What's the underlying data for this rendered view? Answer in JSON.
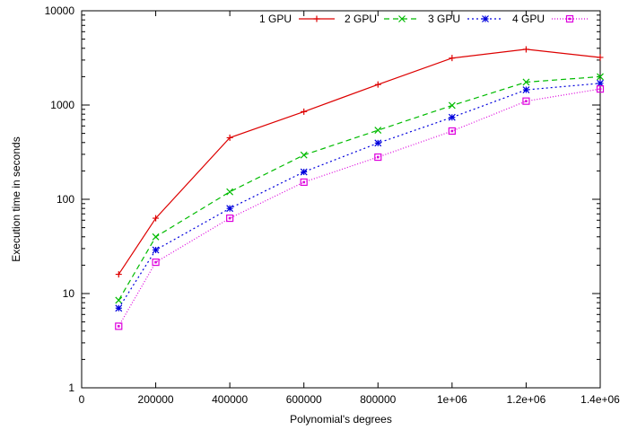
{
  "chart_data": {
    "type": "line",
    "xlabel": "Polynomial's degrees",
    "ylabel": "Execution time in seconds",
    "xlim": [
      0,
      1400000
    ],
    "ylim": [
      1,
      10000
    ],
    "yscale": "log",
    "x_ticks": [
      {
        "value": 0,
        "label": "0"
      },
      {
        "value": 200000,
        "label": "200000"
      },
      {
        "value": 400000,
        "label": "400000"
      },
      {
        "value": 600000,
        "label": "600000"
      },
      {
        "value": 800000,
        "label": "800000"
      },
      {
        "value": 1000000,
        "label": "1e+06"
      },
      {
        "value": 1200000,
        "label": "1.2e+06"
      },
      {
        "value": 1400000,
        "label": "1.4e+06"
      }
    ],
    "y_ticks": [
      {
        "value": 1,
        "label": "1"
      },
      {
        "value": 10,
        "label": "10"
      },
      {
        "value": 100,
        "label": "100"
      },
      {
        "value": 1000,
        "label": "1000"
      },
      {
        "value": 10000,
        "label": "10000"
      }
    ],
    "grid": false,
    "legend_position": "top-right",
    "x": [
      100000,
      200000,
      400000,
      600000,
      800000,
      1000000,
      1200000,
      1400000
    ],
    "series": [
      {
        "name": "1 GPU",
        "color": "#dd0000",
        "dash": "",
        "marker": "plus",
        "values": [
          16,
          63,
          450,
          850,
          1650,
          3150,
          3900,
          3200
        ]
      },
      {
        "name": "2 GPU",
        "color": "#00bb00",
        "dash": "6,4",
        "marker": "cross",
        "values": [
          8.5,
          40,
          120,
          295,
          540,
          990,
          1750,
          2000
        ]
      },
      {
        "name": "3 GPU",
        "color": "#0000dd",
        "dash": "2,3",
        "marker": "star",
        "values": [
          7,
          29,
          80,
          195,
          395,
          740,
          1450,
          1700
        ]
      },
      {
        "name": "4 GPU",
        "color": "#dd00dd",
        "dash": "1,2",
        "marker": "square",
        "values": [
          4.5,
          21.5,
          63,
          152,
          280,
          530,
          1100,
          1480
        ]
      }
    ]
  }
}
